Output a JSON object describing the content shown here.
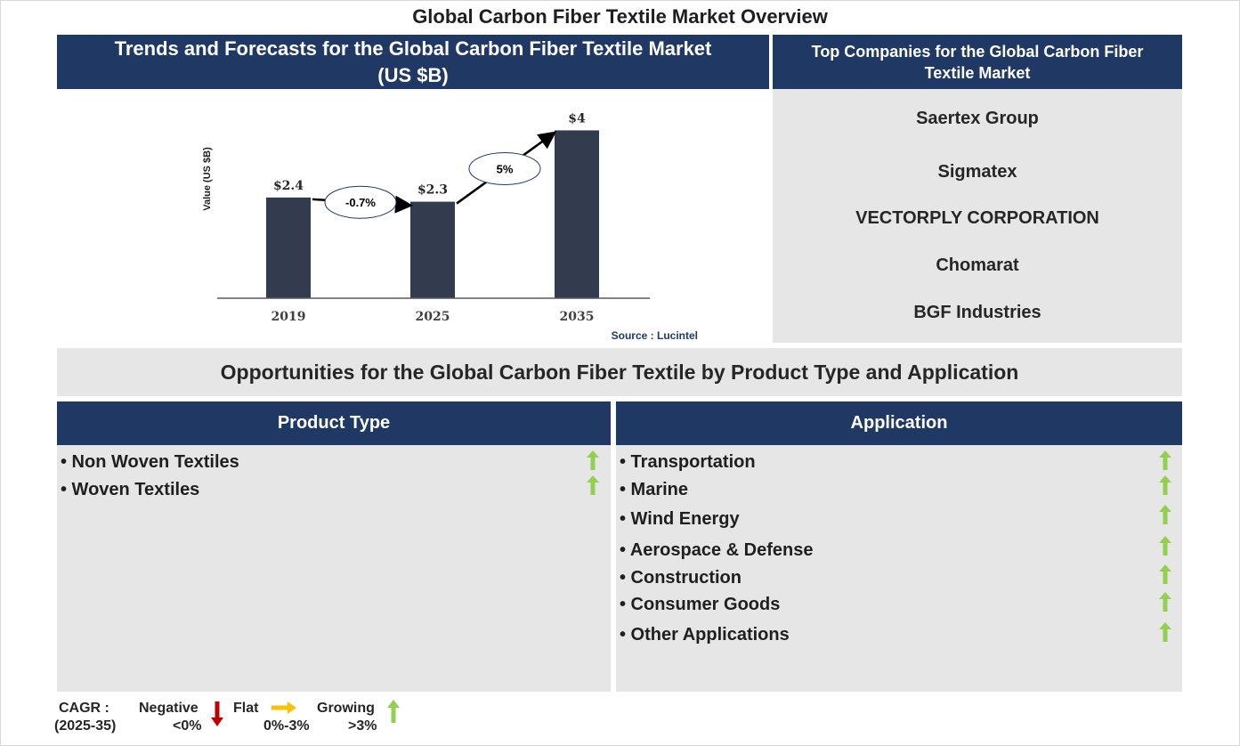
{
  "title": "Global Carbon Fiber Textile Market Overview",
  "chart_panel": {
    "header": "Trends and Forecasts for the Global Carbon Fiber Textile Market (US $B)"
  },
  "chart_data": {
    "type": "bar",
    "title": "Trends and Forecasts for the Global Carbon Fiber Textile Market (US $B)",
    "categories": [
      "2019",
      "2025",
      "2035"
    ],
    "values": [
      2.4,
      2.3,
      4
    ],
    "value_labels": [
      "$2.4",
      "$2.3",
      "$4"
    ],
    "ylabel": "Value (US $B)",
    "xlabel": "",
    "ylim": [
      0,
      4.2
    ],
    "grid": false,
    "cagr_annotations": [
      "-0.7%",
      "5%"
    ],
    "source": "Source : Lucintel",
    "bar_color": "#323c4e"
  },
  "companies": {
    "header": "Top Companies for the Global Carbon Fiber Textile Market",
    "items": [
      "Saertex Group",
      "Sigmatex",
      "VECTORPLY CORPORATION",
      "Chomarat",
      "BGF Industries"
    ]
  },
  "opportunities": {
    "title": "Opportunities for the Global Carbon Fiber Textile by Product Type and Application",
    "product_type": {
      "header": "Product Type",
      "items": [
        "• Non Woven Textiles",
        "• Woven Textiles"
      ],
      "trend": [
        "growing",
        "growing"
      ]
    },
    "application": {
      "header": "Application",
      "items": [
        "• Transportation",
        "• Marine",
        "• Wind Energy",
        "• Aerospace & Defense",
        "• Construction",
        "• Consumer Goods",
        "• Other Applications"
      ],
      "trend": [
        "growing",
        "growing",
        "growing",
        "growing",
        "growing",
        "growing",
        "growing"
      ]
    }
  },
  "legend": {
    "cagr_label": "CAGR  :",
    "period": "(2025-35)",
    "negative": "Negative",
    "negative_range": "<0%",
    "flat": "Flat",
    "flat_range": "0%-3%",
    "growing": "Growing",
    "growing_range": ">3%"
  },
  "colors": {
    "navy": "#1f3864",
    "panel_grey": "#e7e6e6",
    "up_arrow": "#92d050",
    "down_arrow": "#c00000",
    "flat_arrow": "#ffc000"
  }
}
